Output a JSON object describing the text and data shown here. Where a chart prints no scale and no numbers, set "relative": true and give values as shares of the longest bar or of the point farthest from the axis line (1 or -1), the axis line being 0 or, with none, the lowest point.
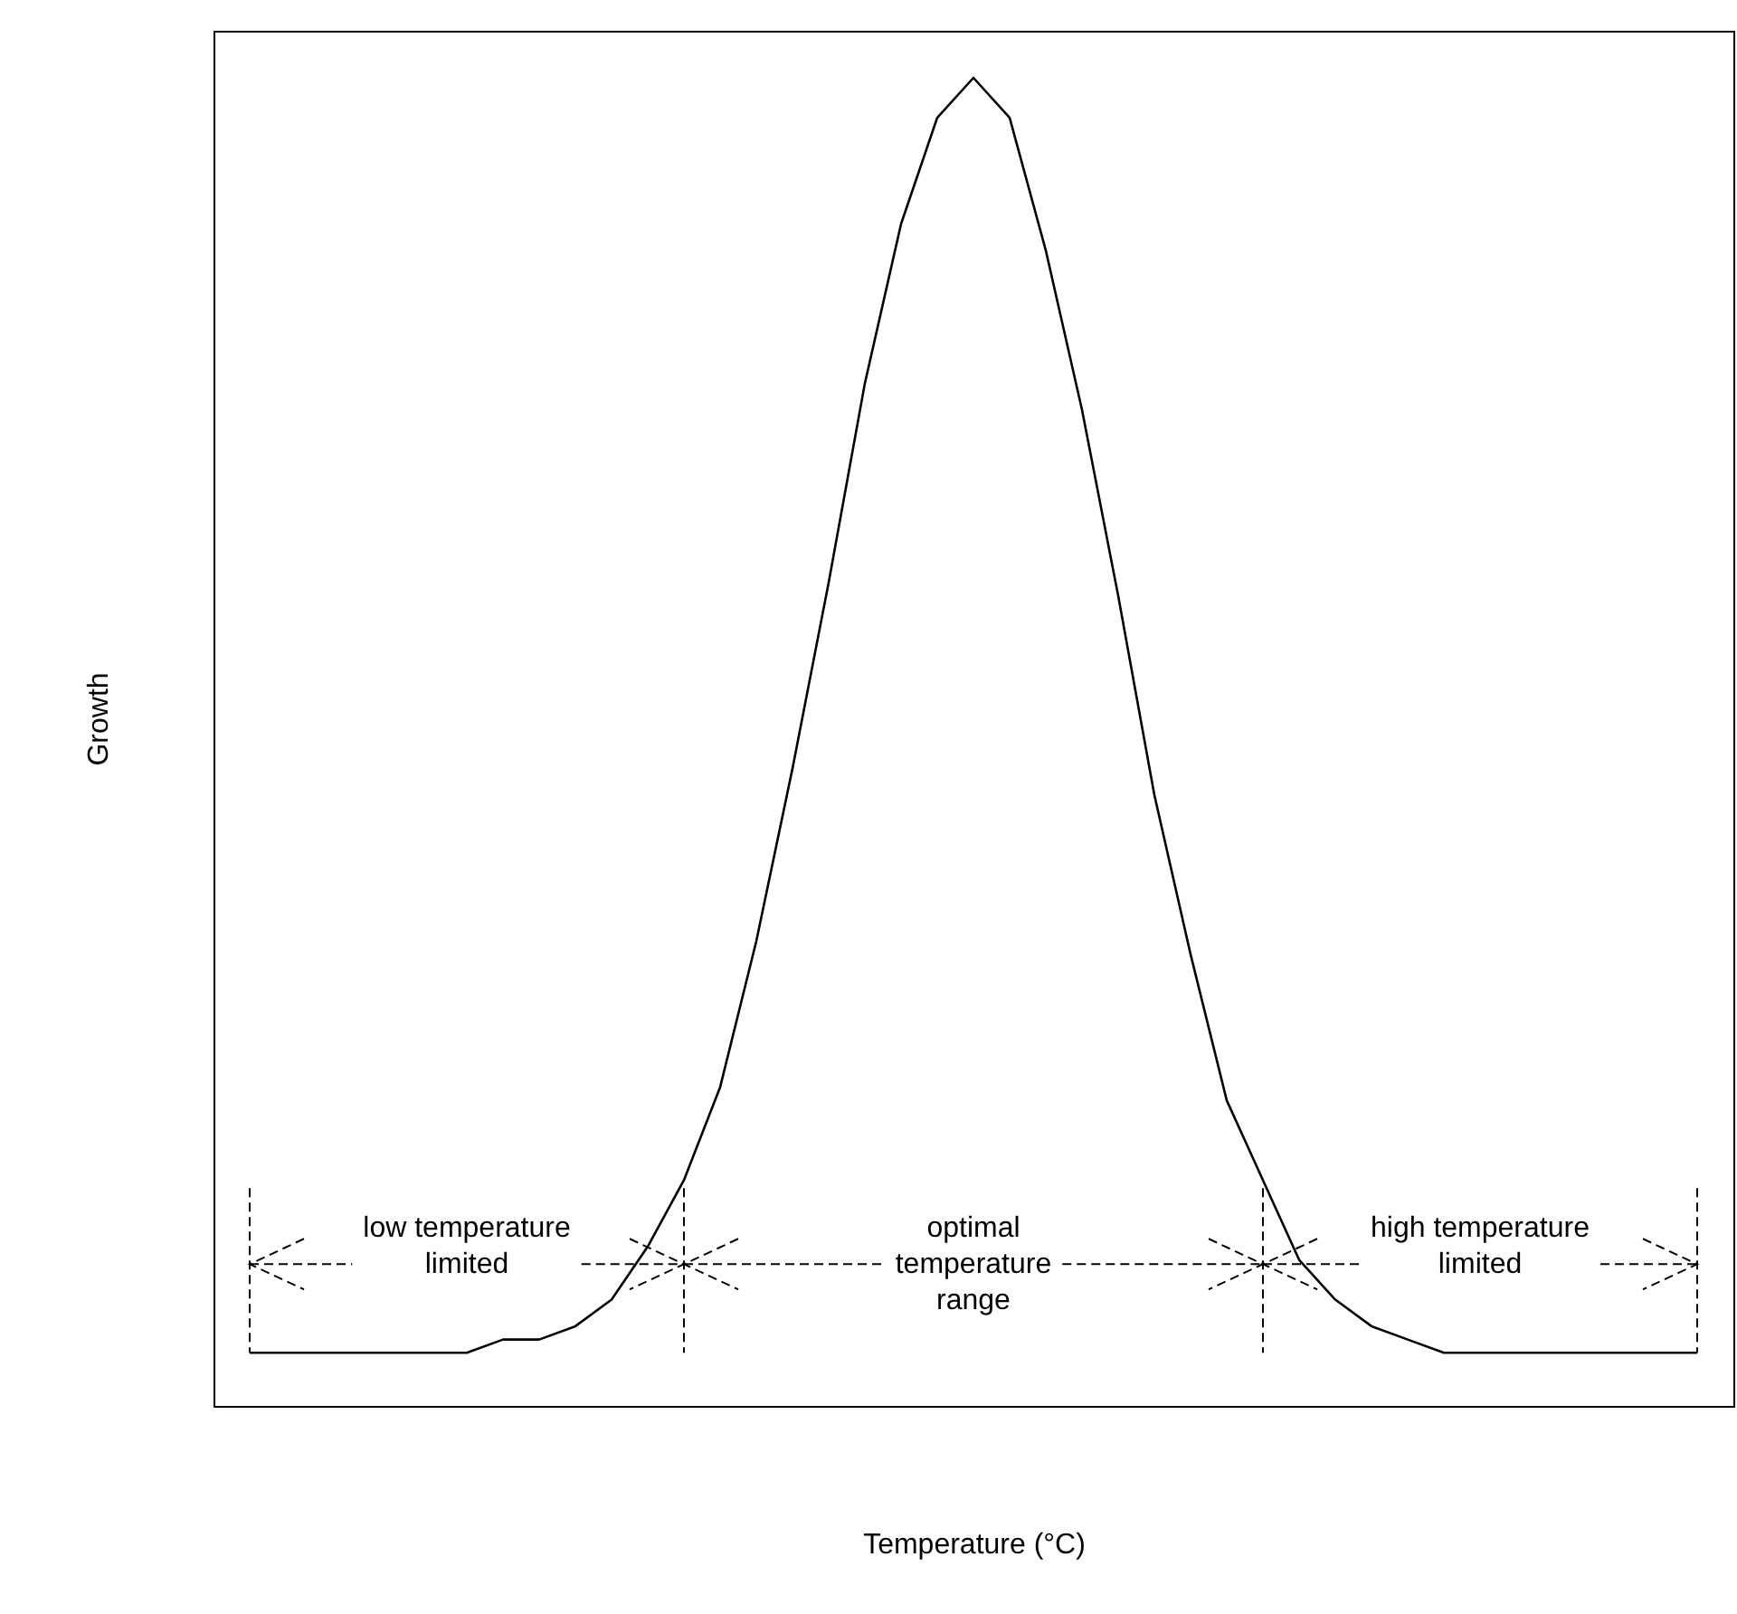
{
  "chart_data": {
    "type": "line",
    "relative": true,
    "xlabel": "Temperature (°C)",
    "ylabel": "Growth",
    "color": "#000000",
    "categories": [
      null,
      null,
      null,
      null,
      null,
      null,
      null,
      null,
      null,
      null,
      null,
      null,
      null,
      null,
      null,
      null,
      null,
      null,
      null,
      null,
      null,
      null,
      null,
      null,
      null,
      null,
      null,
      null,
      null,
      null,
      null,
      null,
      null,
      null,
      null,
      null,
      null,
      null,
      null,
      null,
      null
    ],
    "values": [
      0.04,
      0.04,
      0.04,
      0.04,
      0.04,
      0.04,
      0.04,
      0.05,
      0.05,
      0.06,
      0.08,
      0.12,
      0.17,
      0.24,
      0.35,
      0.48,
      0.62,
      0.77,
      0.89,
      0.97,
      1,
      0.97,
      0.87,
      0.75,
      0.61,
      0.46,
      0.34,
      0.23,
      0.17,
      0.11,
      0.08,
      0.06,
      0.05,
      0.04,
      0.04,
      0.04,
      0.04,
      0.04,
      0.04,
      0.04,
      0.04
    ],
    "annotations": [
      "low temperature\nlimited",
      "optimal\ntemperature\nrange",
      "high temperature\nlimited"
    ],
    "grid": false,
    "marker": "none",
    "line_style": "solid"
  }
}
